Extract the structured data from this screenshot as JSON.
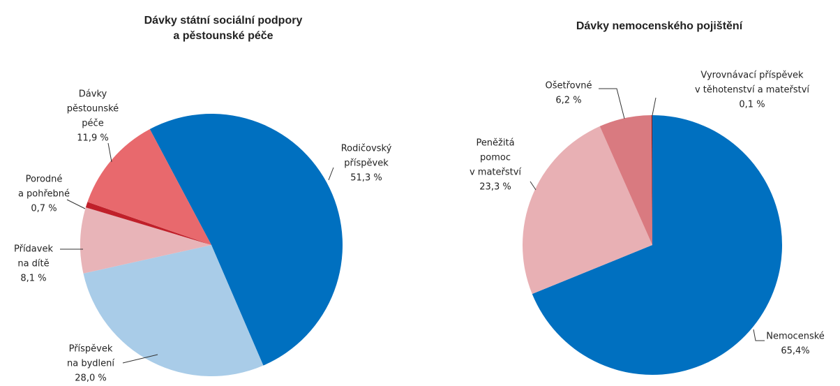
{
  "chart_data": [
    {
      "type": "pie",
      "title": [
        "Dávky  státní sociální podpory",
        "a pěstounské péče"
      ],
      "categories": [
        [
          "Rodičovský",
          "příspěvek"
        ],
        [
          "Příspěvek",
          "na bydlení"
        ],
        [
          "Přídavek",
          "na dítě"
        ],
        [
          "Porodné",
          "a pohřebné"
        ],
        [
          "Dávky",
          "pěstounské",
          "péče"
        ]
      ],
      "values": [
        51.3,
        28.0,
        8.1,
        0.7,
        11.9
      ],
      "value_labels": [
        "51,3 %",
        "28,0 %",
        "8,1 %",
        "0,7 %",
        "11,9 %"
      ],
      "colors": [
        "#0070c0",
        "#a9cce8",
        "#e8b4b8",
        "#c0202a",
        "#e8696d"
      ]
    },
    {
      "type": "pie",
      "title": [
        "Dávky  nemocenského pojištění"
      ],
      "categories": [
        [
          "Nemocenské"
        ],
        [
          "Peněžitá",
          "pomoc",
          "v mateřství"
        ],
        [
          "Ošetřovné"
        ],
        [
          "Vyrovnávací příspěvek",
          "v těhotenství a mateřství"
        ]
      ],
      "values": [
        65.4,
        23.3,
        6.2,
        0.1
      ],
      "value_labels": [
        "65,4%",
        "23,3 %",
        "6,2 %",
        "0,1 %"
      ],
      "colors": [
        "#0070c0",
        "#e8b0b4",
        "#d97a80",
        "#8b1a1a"
      ]
    }
  ]
}
